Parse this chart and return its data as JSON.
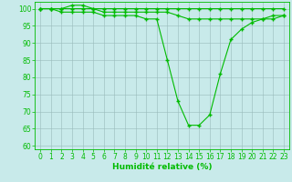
{
  "line1": {
    "x": [
      0,
      1,
      2,
      3,
      4,
      5,
      6,
      7,
      8,
      9,
      10,
      11,
      12,
      13,
      14,
      15,
      16,
      17,
      18,
      19,
      20,
      21,
      22,
      23
    ],
    "y": [
      100,
      100,
      100,
      101,
      101,
      100,
      100,
      100,
      100,
      100,
      100,
      100,
      100,
      100,
      100,
      100,
      100,
      100,
      100,
      100,
      100,
      100,
      100,
      100
    ]
  },
  "line2": {
    "x": [
      0,
      1,
      2,
      3,
      4,
      5,
      6,
      7,
      8,
      9,
      10,
      11,
      12,
      13,
      14,
      15,
      16,
      17,
      18,
      19,
      20,
      21,
      22,
      23
    ],
    "y": [
      100,
      100,
      100,
      100,
      100,
      100,
      99,
      99,
      99,
      99,
      99,
      99,
      99,
      98,
      97,
      97,
      97,
      97,
      97,
      97,
      97,
      97,
      97,
      98
    ]
  },
  "line3": {
    "x": [
      0,
      1,
      2,
      3,
      4,
      5,
      6,
      7,
      8,
      9,
      10,
      11,
      12,
      13,
      14,
      15,
      16,
      17,
      18,
      19,
      20,
      21,
      22,
      23
    ],
    "y": [
      100,
      100,
      99,
      99,
      99,
      99,
      98,
      98,
      98,
      98,
      97,
      97,
      85,
      73,
      66,
      66,
      69,
      81,
      91,
      94,
      96,
      97,
      98,
      98
    ]
  },
  "line_color": "#00bb00",
  "bg_color": "#c8eaea",
  "grid_color": "#99bbbb",
  "xlabel": "Humidité relative (%)",
  "xlim": [
    -0.5,
    23.5
  ],
  "ylim": [
    59,
    102
  ],
  "yticks": [
    60,
    65,
    70,
    75,
    80,
    85,
    90,
    95,
    100
  ],
  "xticks": [
    0,
    1,
    2,
    3,
    4,
    5,
    6,
    7,
    8,
    9,
    10,
    11,
    12,
    13,
    14,
    15,
    16,
    17,
    18,
    19,
    20,
    21,
    22,
    23
  ],
  "xlabel_fontsize": 6.5,
  "tick_fontsize": 5.5,
  "marker": "+",
  "marker_size": 3,
  "line_width": 0.8
}
